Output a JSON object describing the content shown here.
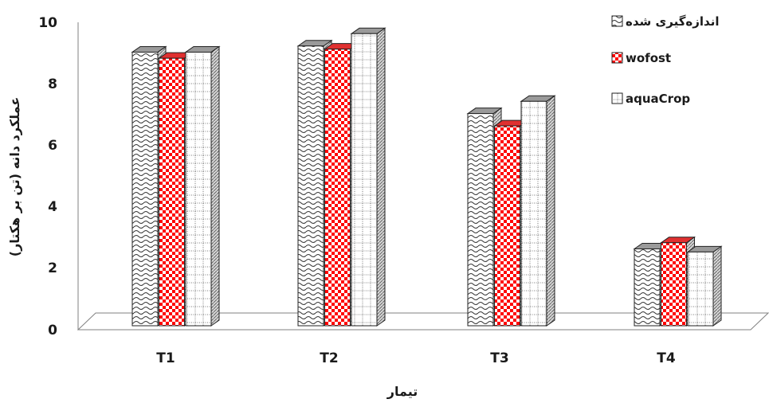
{
  "chart_data": {
    "type": "bar",
    "style": "3d-clustered-column",
    "xlabel": "تیمار",
    "ylabel": "عملکرد دانه (تن بر هکتار)",
    "ylim": [
      0,
      10
    ],
    "yticks": [
      "0",
      "2",
      "4",
      "6",
      "8",
      "10"
    ],
    "categories": [
      "T1",
      "T2",
      "T3",
      "T4"
    ],
    "legend_position": "top-right",
    "grid": false,
    "series": [
      {
        "name": "اندازه‌گیری شده",
        "pattern": "wave",
        "color": "#ffffff",
        "values": [
          8.9,
          9.1,
          6.9,
          2.5
        ]
      },
      {
        "name": "wofost",
        "pattern": "checker",
        "color": "#ff0000",
        "values": [
          8.7,
          9.0,
          6.5,
          2.7
        ]
      },
      {
        "name": "aquaCrop",
        "pattern": "dotted-grid",
        "color": "#ffffff",
        "values": [
          8.9,
          9.5,
          7.3,
          2.4
        ]
      }
    ]
  }
}
